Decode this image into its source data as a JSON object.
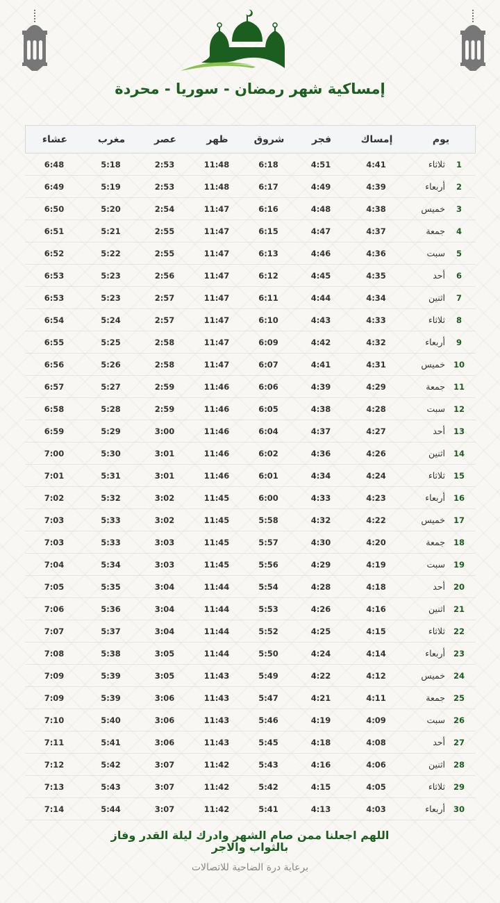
{
  "title": "إمساكية شهر رمضان - سوريا - محردة",
  "colors": {
    "primary_green": "#1b5e20",
    "light_green": "#8bc34a",
    "lantern_gray": "#777777"
  },
  "icons": [
    "lantern-icon",
    "mosque-logo"
  ],
  "table": {
    "headers": {
      "day": "يوم",
      "imsak": "إمساك",
      "fajr": "فجر",
      "shuruq": "شروق",
      "dhuhr": "ظهر",
      "asr": "عصر",
      "maghrib": "مغرب",
      "isha": "عشاء"
    },
    "rows": [
      [
        "1",
        "ثلاثاء",
        "4:41",
        "4:51",
        "6:18",
        "11:48",
        "2:53",
        "5:18",
        "6:48"
      ],
      [
        "2",
        "أربعاء",
        "4:39",
        "4:49",
        "6:17",
        "11:48",
        "2:53",
        "5:19",
        "6:49"
      ],
      [
        "3",
        "خميس",
        "4:38",
        "4:48",
        "6:16",
        "11:47",
        "2:54",
        "5:20",
        "6:50"
      ],
      [
        "4",
        "جمعة",
        "4:37",
        "4:47",
        "6:15",
        "11:47",
        "2:55",
        "5:21",
        "6:51"
      ],
      [
        "5",
        "سبت",
        "4:36",
        "4:46",
        "6:13",
        "11:47",
        "2:55",
        "5:22",
        "6:52"
      ],
      [
        "6",
        "أحد",
        "4:35",
        "4:45",
        "6:12",
        "11:47",
        "2:56",
        "5:23",
        "6:53"
      ],
      [
        "7",
        "اثنين",
        "4:34",
        "4:44",
        "6:11",
        "11:47",
        "2:57",
        "5:23",
        "6:53"
      ],
      [
        "8",
        "ثلاثاء",
        "4:33",
        "4:43",
        "6:10",
        "11:47",
        "2:57",
        "5:24",
        "6:54"
      ],
      [
        "9",
        "أربعاء",
        "4:32",
        "4:42",
        "6:09",
        "11:47",
        "2:58",
        "5:25",
        "6:55"
      ],
      [
        "10",
        "خميس",
        "4:31",
        "4:41",
        "6:07",
        "11:47",
        "2:58",
        "5:26",
        "6:56"
      ],
      [
        "11",
        "جمعة",
        "4:29",
        "4:39",
        "6:06",
        "11:46",
        "2:59",
        "5:27",
        "6:57"
      ],
      [
        "12",
        "سبت",
        "4:28",
        "4:38",
        "6:05",
        "11:46",
        "2:59",
        "5:28",
        "6:58"
      ],
      [
        "13",
        "أحد",
        "4:27",
        "4:37",
        "6:04",
        "11:46",
        "3:00",
        "5:29",
        "6:59"
      ],
      [
        "14",
        "اثنين",
        "4:26",
        "4:36",
        "6:02",
        "11:46",
        "3:01",
        "5:30",
        "7:00"
      ],
      [
        "15",
        "ثلاثاء",
        "4:24",
        "4:34",
        "6:01",
        "11:46",
        "3:01",
        "5:31",
        "7:01"
      ],
      [
        "16",
        "أربعاء",
        "4:23",
        "4:33",
        "6:00",
        "11:45",
        "3:02",
        "5:32",
        "7:02"
      ],
      [
        "17",
        "خميس",
        "4:22",
        "4:32",
        "5:58",
        "11:45",
        "3:02",
        "5:33",
        "7:03"
      ],
      [
        "18",
        "جمعة",
        "4:20",
        "4:30",
        "5:57",
        "11:45",
        "3:03",
        "5:33",
        "7:03"
      ],
      [
        "19",
        "سبت",
        "4:19",
        "4:29",
        "5:56",
        "11:45",
        "3:03",
        "5:34",
        "7:04"
      ],
      [
        "20",
        "أحد",
        "4:18",
        "4:28",
        "5:54",
        "11:44",
        "3:04",
        "5:35",
        "7:05"
      ],
      [
        "21",
        "اثنين",
        "4:16",
        "4:26",
        "5:53",
        "11:44",
        "3:04",
        "5:36",
        "7:06"
      ],
      [
        "22",
        "ثلاثاء",
        "4:15",
        "4:25",
        "5:52",
        "11:44",
        "3:04",
        "5:37",
        "7:07"
      ],
      [
        "23",
        "أربعاء",
        "4:14",
        "4:24",
        "5:50",
        "11:44",
        "3:05",
        "5:38",
        "7:08"
      ],
      [
        "24",
        "خميس",
        "4:12",
        "4:22",
        "5:49",
        "11:43",
        "3:05",
        "5:39",
        "7:09"
      ],
      [
        "25",
        "جمعة",
        "4:11",
        "4:21",
        "5:47",
        "11:43",
        "3:06",
        "5:39",
        "7:09"
      ],
      [
        "26",
        "سبت",
        "4:09",
        "4:19",
        "5:46",
        "11:43",
        "3:06",
        "5:40",
        "7:10"
      ],
      [
        "27",
        "أحد",
        "4:08",
        "4:18",
        "5:45",
        "11:43",
        "3:06",
        "5:41",
        "7:11"
      ],
      [
        "28",
        "اثنين",
        "4:06",
        "4:16",
        "5:43",
        "11:42",
        "3:07",
        "5:42",
        "7:12"
      ],
      [
        "29",
        "ثلاثاء",
        "4:05",
        "4:15",
        "5:42",
        "11:42",
        "3:07",
        "5:43",
        "7:13"
      ],
      [
        "30",
        "أربعاء",
        "4:03",
        "4:13",
        "5:41",
        "11:42",
        "3:07",
        "5:44",
        "7:14"
      ]
    ]
  },
  "footer": {
    "prayer": "اللهم اجعلنا ممن صام الشهر وادرك ليلة القدر وفاز بالثواب والاجر",
    "sponsor": "برعاية درة الضاحية للاتصالات"
  }
}
